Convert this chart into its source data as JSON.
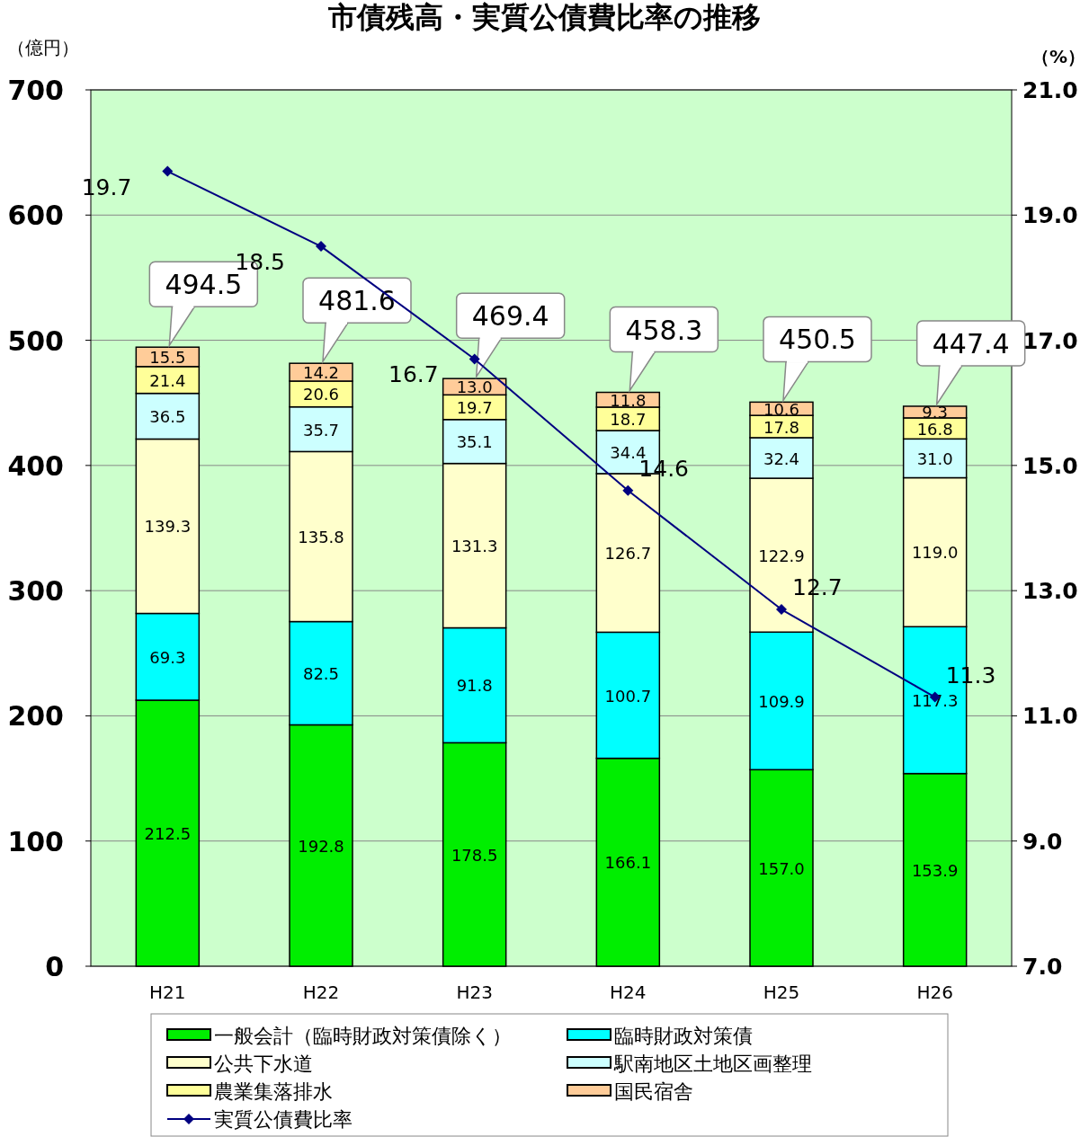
{
  "chart_data": {
    "type": "bar",
    "title": "市債残高・実質公債費比率の推移",
    "ylabel": "（億円）",
    "y2label": "（%）",
    "categories": [
      "H21",
      "H22",
      "H23",
      "H24",
      "H25",
      "H26"
    ],
    "stacked": true,
    "grid": "y",
    "legend": "bottom",
    "marker": "diamond",
    "ylim": [
      0,
      700
    ],
    "yticks": [
      0,
      100,
      200,
      300,
      400,
      500,
      600,
      700
    ],
    "y2lim": [
      7,
      21
    ],
    "y2ticks": [
      {
        "value": 7,
        "label": "7.0"
      },
      {
        "value": 9,
        "label": "9.0"
      },
      {
        "value": 11,
        "label": "11.0"
      },
      {
        "value": 13,
        "label": "13.0"
      },
      {
        "value": 15,
        "label": "15.0"
      },
      {
        "value": 17,
        "label": "17.0"
      },
      {
        "value": 19,
        "label": "19.0"
      },
      {
        "value": 21,
        "label": "21.0"
      }
    ],
    "totals": [
      "494.5",
      "481.6",
      "469.4",
      "458.3",
      "450.5",
      "447.4"
    ],
    "series": [
      {
        "name": "一般会計（臨時財政対策債除く）",
        "color": "#00ee00",
        "values": [
          212.5,
          192.8,
          178.5,
          166.1,
          157.0,
          153.9
        ],
        "value_labels": [
          "212.5",
          "192.8",
          "178.5",
          "166.1",
          "157.0",
          "153.9"
        ]
      },
      {
        "name": "臨時財政対策債",
        "color": "#00ffff",
        "values": [
          69.3,
          82.5,
          91.8,
          100.7,
          109.9,
          117.3
        ],
        "value_labels": [
          "69.3",
          "82.5",
          "91.8",
          "100.7",
          "109.9",
          "117.3"
        ]
      },
      {
        "name": "公共下水道",
        "color": "#ffffcc",
        "values": [
          139.3,
          135.8,
          131.3,
          126.7,
          122.9,
          119.0
        ],
        "value_labels": [
          "139.3",
          "135.8",
          "131.3",
          "126.7",
          "122.9",
          "119.0"
        ]
      },
      {
        "name": "駅南地区土地区画整理",
        "color": "#ccffff",
        "values": [
          36.5,
          35.7,
          35.1,
          34.4,
          32.4,
          31.0
        ],
        "value_labels": [
          "36.5",
          "35.7",
          "35.1",
          "34.4",
          "32.4",
          "31.0"
        ]
      },
      {
        "name": "農業集落排水",
        "color": "#ffff99",
        "values": [
          21.4,
          20.6,
          19.7,
          18.7,
          17.8,
          16.8
        ],
        "value_labels": [
          "21.4",
          "20.6",
          "19.7",
          "18.7",
          "17.8",
          "16.8"
        ]
      },
      {
        "name": "国民宿舎",
        "color": "#ffcc99",
        "values": [
          15.5,
          14.2,
          13.0,
          11.8,
          10.6,
          9.3
        ],
        "value_labels": [
          "15.5",
          "14.2",
          "13.0",
          "11.8",
          "10.6",
          "9.3"
        ]
      },
      {
        "name": "実質公債費比率",
        "type": "line",
        "axis": "y2",
        "color": "#000080",
        "values": [
          19.7,
          18.5,
          16.7,
          14.6,
          12.7,
          11.3
        ],
        "value_labels": [
          "19.7",
          "18.5",
          "16.7",
          "14.6",
          "12.7",
          "11.3"
        ]
      }
    ]
  }
}
